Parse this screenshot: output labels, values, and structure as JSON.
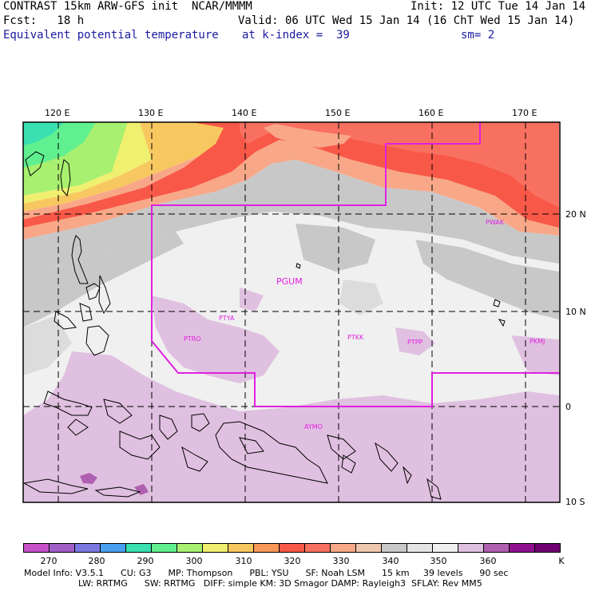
{
  "header": {
    "line1_left": "CONTRAST 15km ARW-GFS init  NCAR/MMMM",
    "line1_right": "Init: 12 UTC Tue 14 Jan 14",
    "line2_left": "Fcst:   18 h",
    "line2_right": "Valid: 06 UTC Wed 15 Jan 14 (16 ChT Wed 15 Jan 14)",
    "line3_left": "Equivalent potential temperature",
    "line3_mid": "at k-index =  39",
    "line3_right": "sm= 2"
  },
  "map": {
    "lon_labels": [
      "120 E",
      "130 E",
      "140 E",
      "150 E",
      "160 E",
      "170 E"
    ],
    "lat_labels": [
      "20 N",
      "10 N",
      "0",
      "10 S"
    ],
    "stations": [
      "PWAK",
      "PGUM",
      "PTYA",
      "PTRO",
      "PTKK",
      "PTPP",
      "PKMJ",
      "AYMO"
    ]
  },
  "colorbar": {
    "labels": [
      "270",
      "280",
      "290",
      "300",
      "310",
      "320",
      "330",
      "340",
      "350",
      "360"
    ],
    "unit": "K",
    "colors": [
      "#c850c8",
      "#a060c8",
      "#7a78e0",
      "#4aa0f0",
      "#3ae0b0",
      "#60f090",
      "#a8f070",
      "#f0f070",
      "#f8c860",
      "#f89858",
      "#f85848",
      "#f87060",
      "#f8a888",
      "#f0c8b0",
      "#c8c8c8",
      "#e4e4e4",
      "#f0f0f0",
      "#e0c0e0",
      "#b060b0",
      "#901090",
      "#700070"
    ]
  },
  "footer": {
    "line1": "Model Info: V3.5.1      CU: G3      MP: Thompson      PBL: YSU      SF: Noah LSM      15 km     39 levels      90 sec",
    "line2": "LW: RRTMG      SW: RRTMG   DIFF: simple KM: 3D Smagor DAMP: Rayleigh3  SFLAY: Rev MM5"
  }
}
